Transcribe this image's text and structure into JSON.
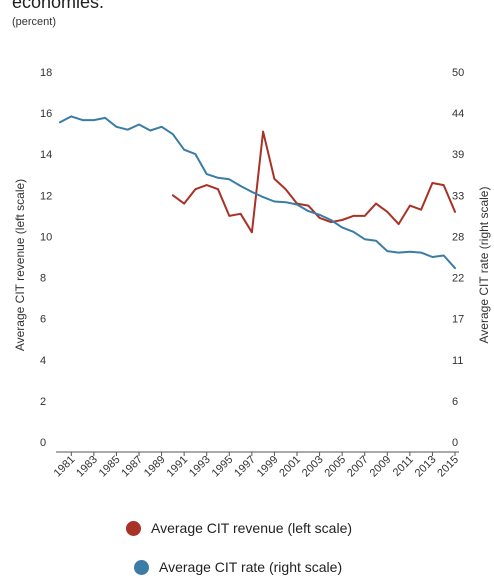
{
  "title_fragment": "economies.",
  "unit_note": "(percent)",
  "chart_data": {
    "type": "line",
    "title": "",
    "xlabel": "",
    "ylabel_left": "Average CIT revenue (left scale)",
    "ylabel_right": "Average CIT rate (right scale)",
    "y_left_ticks": [
      "0",
      "2",
      "4",
      "6",
      "8",
      "10",
      "12",
      "14",
      "16",
      "18"
    ],
    "y_right_ticks": [
      "0",
      "6",
      "11",
      "17",
      "22",
      "28",
      "33",
      "39",
      "44",
      "50"
    ],
    "ylim_left": [
      0,
      18
    ],
    "ylim_right": [
      0,
      50
    ],
    "x_ticks": [
      "1981",
      "1983",
      "1985",
      "1987",
      "1989",
      "1991",
      "1993",
      "1995",
      "1997",
      "1999",
      "2001",
      "2003",
      "2005",
      "2007",
      "2009",
      "2011",
      "2013",
      "2015"
    ],
    "xlim": [
      1980,
      2015
    ],
    "grid": false,
    "legend_position": "bottom",
    "series": [
      {
        "name": "Average CIT revenue (left scale)",
        "axis": "left",
        "color": "#a93226",
        "x": [
          1990,
          1991,
          1992,
          1993,
          1994,
          1995,
          1996,
          1997,
          1998,
          1999,
          2000,
          2001,
          2002,
          2003,
          2004,
          2005,
          2006,
          2007,
          2008,
          2009,
          2010,
          2011,
          2012,
          2013,
          2014,
          2015
        ],
        "values": [
          12.0,
          11.6,
          12.3,
          12.5,
          12.3,
          11.0,
          11.1,
          10.2,
          15.1,
          12.8,
          12.3,
          11.6,
          11.5,
          10.9,
          10.7,
          10.8,
          11.0,
          11.0,
          11.6,
          11.2,
          10.6,
          11.5,
          11.3,
          12.6,
          12.5,
          11.2
        ]
      },
      {
        "name": "Average CIT rate (right scale)",
        "axis": "right",
        "color": "#3a7ca5",
        "x": [
          1980,
          1981,
          1982,
          1983,
          1984,
          1985,
          1986,
          1987,
          1988,
          1989,
          1990,
          1991,
          1992,
          1993,
          1994,
          1995,
          1996,
          1997,
          1998,
          1999,
          2000,
          2001,
          2002,
          2003,
          2004,
          2005,
          2006,
          2007,
          2008,
          2009,
          2010,
          2011,
          2012,
          2013,
          2014,
          2015
        ],
        "values": [
          43.2,
          44.0,
          43.5,
          43.5,
          43.8,
          42.6,
          42.2,
          42.9,
          42.1,
          42.6,
          41.6,
          39.5,
          38.9,
          36.2,
          35.7,
          35.5,
          34.6,
          33.8,
          33.1,
          32.5,
          32.4,
          32.1,
          31.2,
          30.7,
          30.0,
          29.0,
          28.4,
          27.4,
          27.2,
          25.8,
          25.6,
          25.7,
          25.6,
          25.0,
          25.2,
          23.5
        ]
      }
    ]
  }
}
